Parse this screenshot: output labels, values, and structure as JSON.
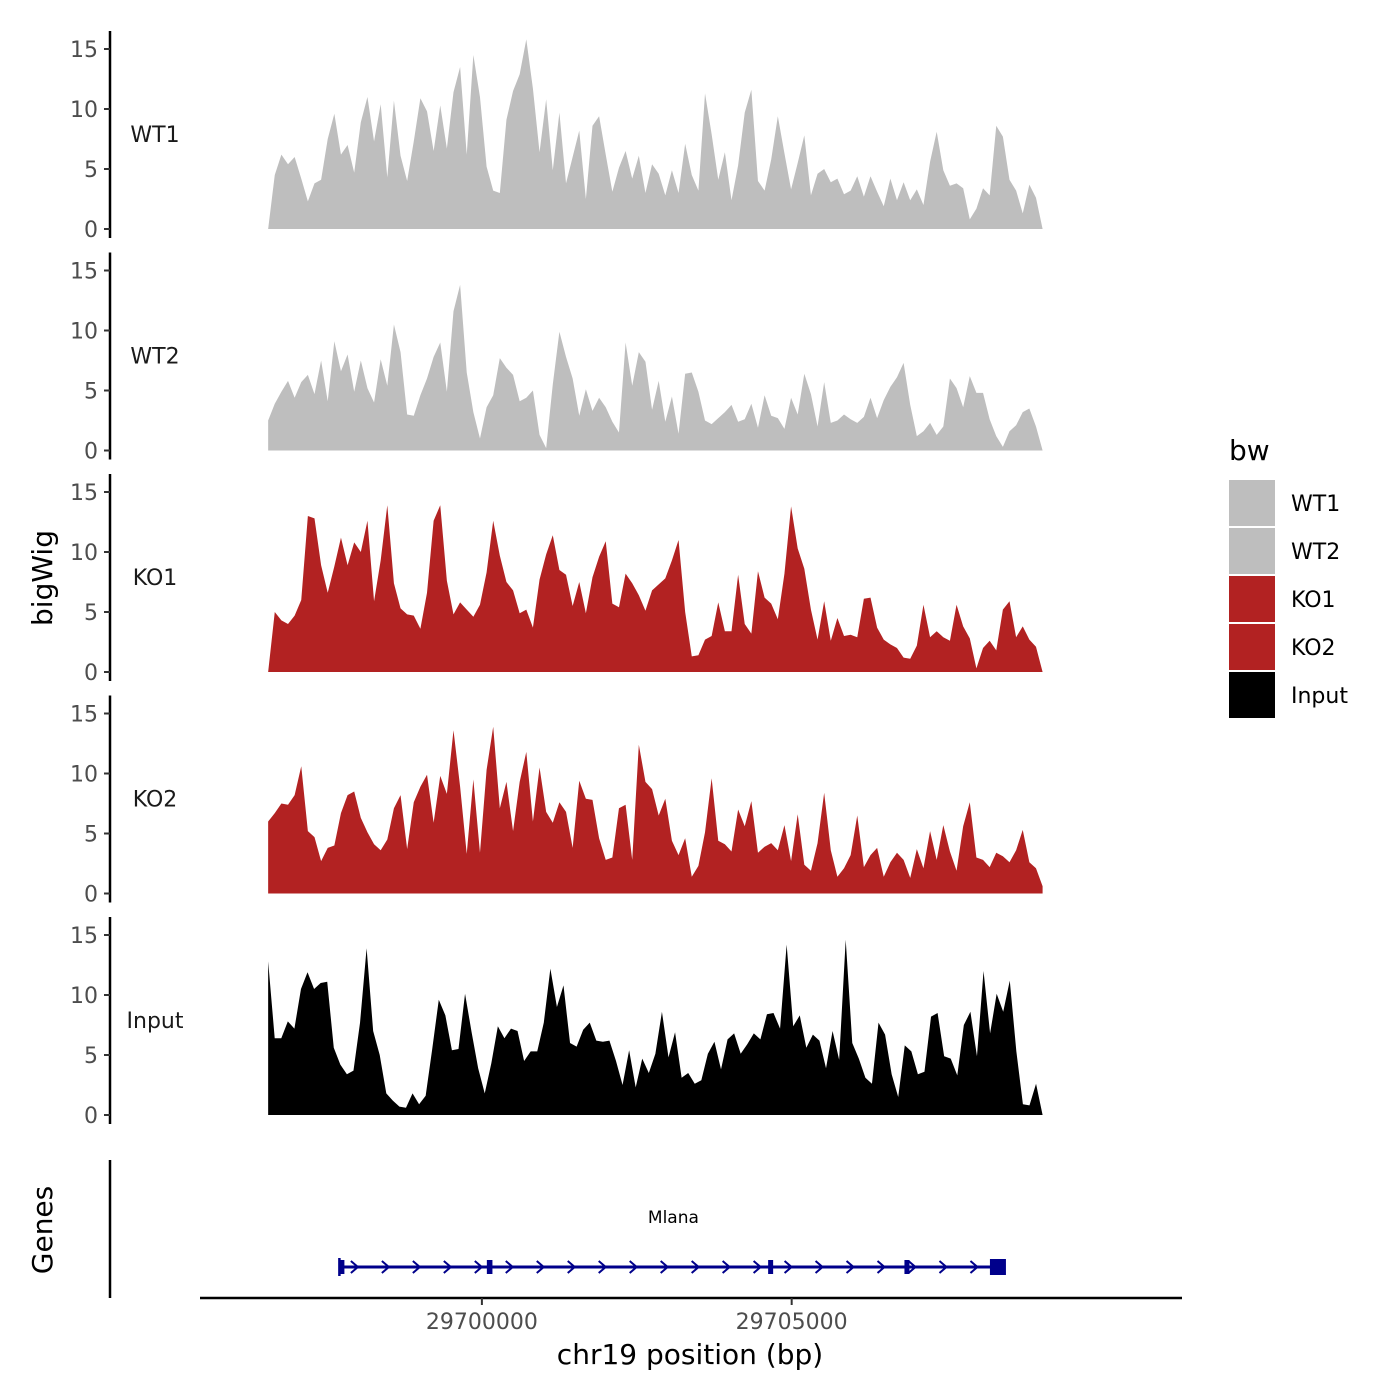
{
  "chart_data": {
    "type": "area",
    "title": "",
    "ylabel": "bigWig",
    "xlabel": "chr19 position (bp)",
    "xlim": [
      29695450,
      29711300
    ],
    "ylim": [
      0,
      16.5
    ],
    "y_ticks": [
      0,
      5,
      10,
      15
    ],
    "x_ticks": [
      {
        "value": 29700000,
        "label": "29700000"
      },
      {
        "value": 29705000,
        "label": "29705000"
      }
    ],
    "legend": {
      "title": "bw",
      "position": "right",
      "entries": [
        {
          "label": "WT1",
          "color": "#bebebe"
        },
        {
          "label": "WT2",
          "color": "#bebebe"
        },
        {
          "label": "KO1",
          "color": "#b22222"
        },
        {
          "label": "KO2",
          "color": "#b22222"
        },
        {
          "label": "Input",
          "color": "#000000"
        }
      ]
    },
    "x_start": 29696550,
    "x_end": 29709050,
    "series": [
      {
        "name": "WT1",
        "color": "#bebebe",
        "values": [
          0,
          4.5,
          6.2,
          5.4,
          6.0,
          4.2,
          2.3,
          3.8,
          4.1,
          7.5,
          9.6,
          6.2,
          7.0,
          4.7,
          8.9,
          11.0,
          7.3,
          10.4,
          4.3,
          10.7,
          6.1,
          4.0,
          7.3,
          10.9,
          9.8,
          6.5,
          10.3,
          6.7,
          11.4,
          13.5,
          6.2,
          14.5,
          11.0,
          5.2,
          3.2,
          3.0,
          9.1,
          11.5,
          12.9,
          15.8,
          11.7,
          6.4,
          10.8,
          4.9,
          9.7,
          3.8,
          6.0,
          8.2,
          2.5,
          8.6,
          9.4,
          6.2,
          3.1,
          5.1,
          6.5,
          4.2,
          6.1,
          3.0,
          5.4,
          4.6,
          2.8,
          4.9,
          3.0,
          7.1,
          4.5,
          3.2,
          11.3,
          7.9,
          4.1,
          6.4,
          2.4,
          5.3,
          9.7,
          11.6,
          4.0,
          3.2,
          5.8,
          9.4,
          6.3,
          3.3,
          5.5,
          7.8,
          2.8,
          4.6,
          5.0,
          3.9,
          4.2,
          2.9,
          3.2,
          4.4,
          2.7,
          4.4,
          3.1,
          1.9,
          4.2,
          2.4,
          3.9,
          2.4,
          3.3,
          2.0,
          5.6,
          8.1,
          4.9,
          3.6,
          3.8,
          3.4,
          0.8,
          1.7,
          3.4,
          2.8,
          8.6,
          7.7,
          4.1,
          3.2,
          1.3,
          3.7,
          2.6,
          0
        ]
      },
      {
        "name": "WT2",
        "color": "#bebebe",
        "values": [
          2.5,
          3.9,
          4.9,
          5.8,
          4.4,
          5.7,
          6.3,
          4.7,
          7.5,
          4.1,
          9.1,
          6.6,
          8.0,
          4.9,
          7.5,
          5.2,
          4.0,
          7.6,
          5.4,
          10.5,
          8.2,
          3.0,
          2.9,
          4.6,
          6.0,
          7.8,
          9.0,
          4.9,
          11.6,
          13.8,
          6.5,
          3.2,
          1.0,
          3.6,
          4.6,
          7.7,
          6.9,
          6.3,
          4.1,
          4.4,
          5.0,
          1.3,
          0.2,
          5.5,
          9.9,
          7.8,
          6.0,
          2.9,
          5.1,
          3.3,
          4.4,
          3.6,
          2.4,
          1.5,
          9.0,
          5.4,
          8.2,
          7.4,
          3.4,
          5.8,
          2.4,
          4.5,
          1.4,
          6.4,
          6.5,
          4.9,
          2.5,
          2.2,
          2.7,
          3.2,
          3.8,
          2.4,
          2.6,
          3.9,
          1.9,
          4.6,
          2.9,
          2.7,
          1.8,
          4.4,
          3.0,
          6.4,
          4.7,
          2.0,
          5.7,
          2.3,
          2.5,
          3.0,
          2.6,
          2.3,
          2.8,
          4.4,
          2.7,
          4.2,
          5.3,
          6.1,
          7.3,
          3.8,
          1.2,
          1.6,
          2.3,
          1.3,
          2.0,
          6.0,
          5.2,
          3.6,
          6.2,
          4.8,
          4.8,
          2.6,
          1.2,
          0.3,
          1.6,
          2.1,
          3.2,
          3.5,
          2.0,
          0
        ]
      },
      {
        "name": "KO1",
        "color": "#b22222",
        "values": [
          0,
          5.0,
          4.3,
          4.0,
          4.7,
          6.0,
          13.0,
          12.8,
          8.9,
          6.6,
          8.8,
          11.2,
          8.9,
          10.8,
          10.0,
          12.6,
          5.9,
          9.3,
          13.9,
          7.4,
          5.3,
          4.8,
          4.7,
          3.6,
          6.6,
          12.6,
          13.9,
          7.6,
          4.8,
          5.8,
          5.2,
          4.6,
          5.6,
          8.3,
          12.6,
          9.7,
          7.5,
          6.8,
          4.9,
          5.2,
          3.7,
          7.7,
          9.8,
          11.4,
          8.5,
          8.1,
          5.5,
          7.5,
          4.9,
          7.9,
          9.6,
          10.9,
          5.7,
          5.4,
          8.2,
          7.4,
          6.4,
          5.1,
          6.8,
          7.3,
          7.8,
          9.3,
          11.0,
          5.0,
          1.3,
          1.4,
          2.7,
          3.0,
          5.8,
          3.4,
          3.4,
          8.1,
          4.0,
          3.2,
          8.4,
          6.2,
          5.7,
          4.4,
          8.2,
          13.8,
          10.3,
          8.6,
          5.2,
          2.7,
          5.9,
          2.6,
          4.5,
          3.0,
          3.1,
          2.9,
          6.1,
          6.2,
          3.7,
          2.7,
          2.3,
          2.0,
          1.2,
          1.1,
          2.2,
          5.6,
          2.9,
          3.4,
          2.9,
          2.6,
          5.6,
          3.8,
          2.8,
          0.3,
          2.0,
          2.6,
          1.8,
          5.2,
          5.9,
          2.9,
          3.8,
          2.7,
          2.1,
          0
        ]
      },
      {
        "name": "KO2",
        "color": "#b22222",
        "values": [
          6.0,
          6.7,
          7.5,
          7.4,
          8.2,
          10.6,
          5.2,
          4.7,
          2.7,
          3.8,
          4.0,
          6.7,
          8.2,
          8.5,
          6.3,
          5.1,
          4.1,
          3.6,
          4.5,
          7.1,
          8.2,
          3.7,
          7.6,
          8.9,
          9.9,
          5.9,
          9.8,
          8.3,
          13.6,
          8.9,
          3.3,
          9.5,
          3.4,
          10.3,
          13.9,
          7.1,
          9.3,
          5.2,
          9.3,
          11.8,
          6.0,
          10.5,
          6.8,
          5.9,
          7.6,
          6.8,
          3.8,
          9.4,
          7.9,
          7.8,
          4.6,
          2.8,
          3.0,
          7.1,
          7.4,
          2.8,
          12.4,
          9.3,
          8.7,
          6.5,
          7.9,
          4.4,
          3.2,
          4.6,
          1.4,
          2.3,
          5.1,
          9.6,
          4.4,
          4.1,
          3.5,
          7.0,
          5.6,
          7.7,
          3.4,
          3.9,
          4.2,
          3.6,
          5.7,
          2.7,
          6.6,
          2.4,
          1.9,
          4.2,
          8.4,
          3.6,
          1.4,
          2.1,
          3.2,
          6.5,
          2.2,
          3.2,
          3.8,
          1.4,
          2.6,
          3.4,
          2.8,
          1.3,
          3.7,
          2.1,
          5.2,
          2.8,
          5.7,
          3.5,
          1.9,
          5.6,
          7.6,
          3.0,
          2.8,
          2.2,
          3.4,
          3.1,
          2.6,
          3.6,
          5.3,
          2.6,
          2.1,
          0.6
        ]
      },
      {
        "name": "Input",
        "color": "#000000",
        "values": [
          12.8,
          6.4,
          6.4,
          7.8,
          7.2,
          10.5,
          11.9,
          10.5,
          11.0,
          11.1,
          5.6,
          4.2,
          3.4,
          3.7,
          7.7,
          13.9,
          7.0,
          5.0,
          1.8,
          1.2,
          0.7,
          0.6,
          1.8,
          0.9,
          1.6,
          5.5,
          9.6,
          8.3,
          5.4,
          5.5,
          10.1,
          6.9,
          3.9,
          1.8,
          4.3,
          7.4,
          6.4,
          7.2,
          7.0,
          4.5,
          5.3,
          5.3,
          7.7,
          12.2,
          9.0,
          10.8,
          6.0,
          5.7,
          7.1,
          7.7,
          6.2,
          6.1,
          6.2,
          4.5,
          2.5,
          5.4,
          2.3,
          4.7,
          3.5,
          5.1,
          8.6,
          4.8,
          6.9,
          3.1,
          3.5,
          2.6,
          2.9,
          5.1,
          6.1,
          3.8,
          6.3,
          6.8,
          5.1,
          5.9,
          6.8,
          6.3,
          8.4,
          8.5,
          7.2,
          14.2,
          7.4,
          8.3,
          5.6,
          6.7,
          6.2,
          3.9,
          7.0,
          4.6,
          14.6,
          6.0,
          4.7,
          3.1,
          2.6,
          7.7,
          6.7,
          3.4,
          1.5,
          5.8,
          5.3,
          3.4,
          3.6,
          8.2,
          8.5,
          4.9,
          4.7,
          3.3,
          7.5,
          8.6,
          4.9,
          12.0,
          6.8,
          10.1,
          8.6,
          11.2,
          5.3,
          0.9,
          0.8,
          2.6,
          0
        ]
      }
    ],
    "genes_track": {
      "label": "Genes",
      "gene_name": "Mlana",
      "color": "#00008b",
      "start": 29697700,
      "end": 29708450,
      "strand": "+",
      "exons": [
        {
          "start": 29697700,
          "end": 29697760
        },
        {
          "start": 29700080,
          "end": 29700170
        },
        {
          "start": 29704620,
          "end": 29704700
        },
        {
          "start": 29706820,
          "end": 29706900
        },
        {
          "start": 29708200,
          "end": 29708450
        }
      ]
    }
  }
}
